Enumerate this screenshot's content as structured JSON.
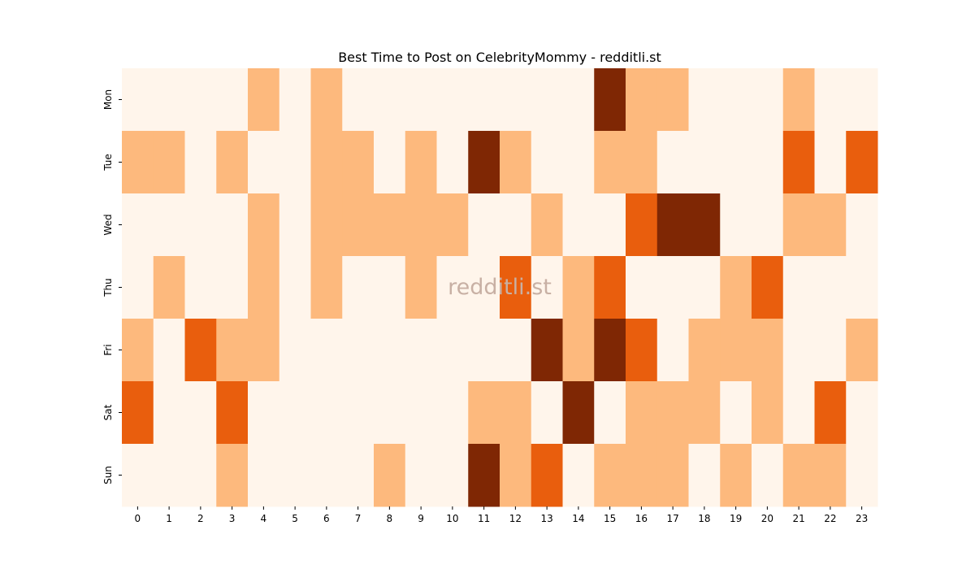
{
  "chart_data": {
    "type": "heatmap",
    "title": "Best Time to Post on CelebrityMommy - redditli.st",
    "xlabel": "",
    "ylabel": "",
    "x_categories": [
      "0",
      "1",
      "2",
      "3",
      "4",
      "5",
      "6",
      "7",
      "8",
      "9",
      "10",
      "11",
      "12",
      "13",
      "14",
      "15",
      "16",
      "17",
      "18",
      "19",
      "20",
      "21",
      "22",
      "23"
    ],
    "y_categories": [
      "Mon",
      "Tue",
      "Wed",
      "Thu",
      "Fri",
      "Sat",
      "Sun"
    ],
    "values": [
      [
        0,
        0,
        0,
        0,
        1,
        0,
        1,
        0,
        0,
        0,
        0,
        0,
        0,
        0,
        0,
        3,
        1,
        1,
        0,
        0,
        0,
        1,
        0,
        0
      ],
      [
        1,
        1,
        0,
        1,
        0,
        0,
        1,
        1,
        0,
        1,
        0,
        3,
        1,
        0,
        0,
        1,
        1,
        0,
        0,
        0,
        0,
        2,
        0,
        2
      ],
      [
        0,
        0,
        0,
        0,
        1,
        0,
        1,
        1,
        1,
        1,
        1,
        0,
        0,
        1,
        0,
        0,
        2,
        3,
        3,
        0,
        0,
        1,
        1,
        0
      ],
      [
        0,
        1,
        0,
        0,
        1,
        0,
        1,
        0,
        0,
        1,
        0,
        0,
        2,
        0,
        1,
        2,
        0,
        0,
        0,
        1,
        2,
        0,
        0,
        0
      ],
      [
        1,
        0,
        2,
        1,
        1,
        0,
        0,
        0,
        0,
        0,
        0,
        0,
        0,
        3,
        1,
        3,
        2,
        0,
        1,
        1,
        1,
        0,
        0,
        1
      ],
      [
        2,
        0,
        0,
        2,
        0,
        0,
        0,
        0,
        0,
        0,
        0,
        1,
        1,
        0,
        3,
        0,
        1,
        1,
        1,
        0,
        1,
        0,
        2,
        0
      ],
      [
        0,
        0,
        0,
        1,
        0,
        0,
        0,
        0,
        1,
        0,
        0,
        3,
        1,
        2,
        0,
        1,
        1,
        1,
        0,
        1,
        0,
        1,
        1,
        0
      ]
    ],
    "colorscale": [
      "#fff5eb",
      "#fdb97d",
      "#e95e0d",
      "#7f2704"
    ],
    "colorbar": false,
    "grid": false,
    "watermark": "redditli.st"
  }
}
